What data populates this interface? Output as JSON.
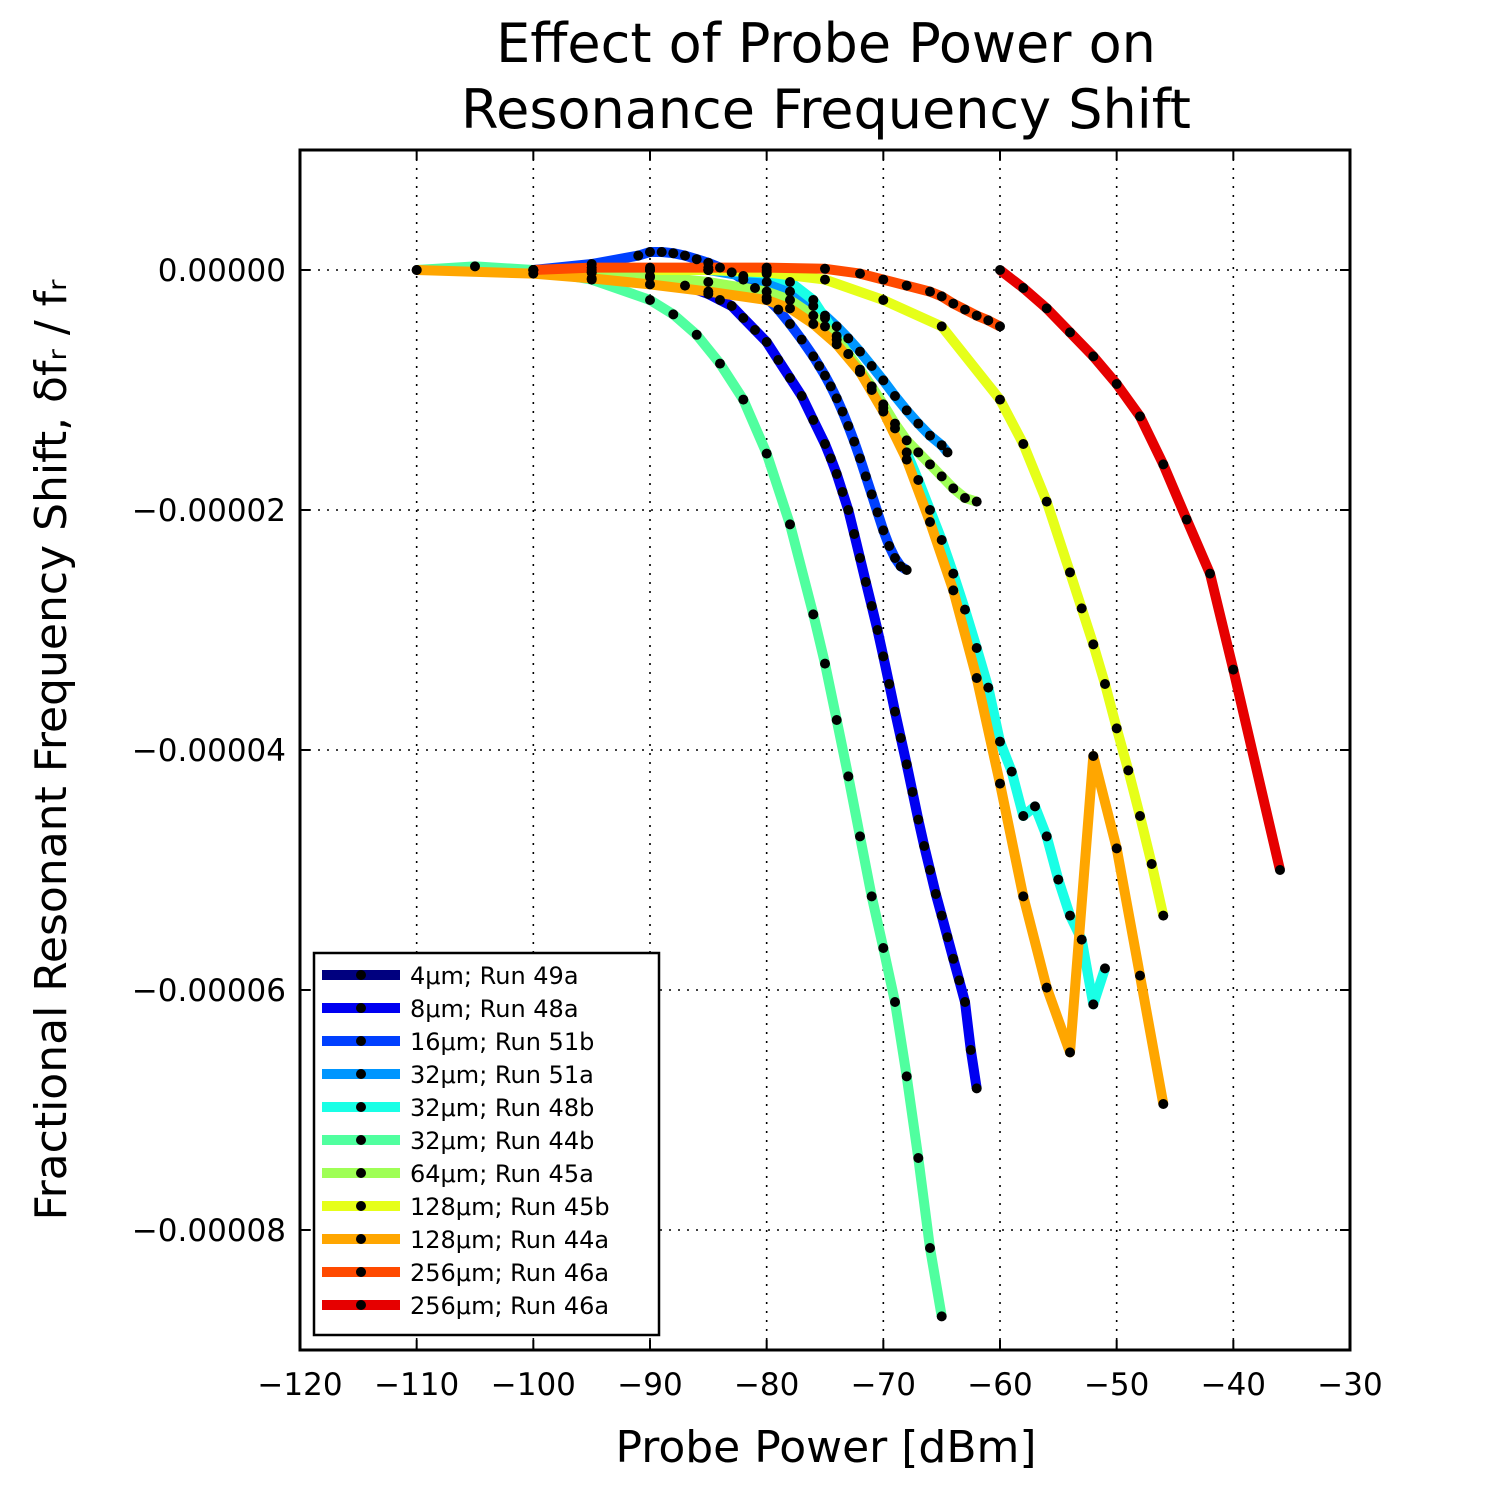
{
  "chart_data": {
    "type": "line",
    "title_lines": [
      "Effect of Probe Power on",
      "Resonance Frequency Shift"
    ],
    "xlabel": "Probe Power [dBm]",
    "ylabel": "Fractional Resonant Frequency Shift, δfᵣ / fᵣ",
    "xlim": [
      -120,
      -30
    ],
    "ylim": [
      -9e-05,
      1e-05
    ],
    "xticks": [
      -120,
      -110,
      -100,
      -90,
      -80,
      -70,
      -60,
      -50,
      -40,
      -30
    ],
    "xtick_labels": [
      "−120",
      "−110",
      "−100",
      "−90",
      "−80",
      "−70",
      "−60",
      "−50",
      "−40",
      "−30"
    ],
    "yticks": [
      0,
      -2e-05,
      -4e-05,
      -6e-05,
      -8e-05
    ],
    "ytick_labels": [
      "0.00000",
      "−0.00002",
      "−0.00004",
      "−0.00006",
      "−0.00008"
    ],
    "grid": true,
    "legend_position": "lower-left",
    "series": [
      {
        "name": "4μm; Run 49a",
        "color": "#00007f",
        "x": [
          -100,
          -95,
          -90,
          -85,
          -80
        ],
        "y": [
          0,
          0,
          0,
          0,
          0
        ]
      },
      {
        "name": "8μm; Run 48a",
        "color": "#0000f1",
        "x": [
          -100,
          -95,
          -90,
          -87,
          -85,
          -84,
          -83,
          -82,
          -81,
          -80,
          -79,
          -78,
          -77,
          -76,
          -75,
          -74.5,
          -74,
          -73.5,
          -73,
          -72.5,
          -72,
          -71.5,
          -71,
          -70.5,
          -70,
          -69.5,
          -69,
          -68.5,
          -68,
          -67.5,
          -67,
          -66.5,
          -66,
          -65.5,
          -65,
          -64.5,
          -64,
          -63.5,
          -63,
          -62.5,
          -62
        ],
        "y": [
          0,
          -2e-07,
          -6e-07,
          -1.3e-06,
          -2e-06,
          -2.5e-06,
          -3e-06,
          -4e-06,
          -5e-06,
          -6e-06,
          -7.5e-06,
          -9e-06,
          -1.05e-05,
          -1.25e-05,
          -1.45e-05,
          -1.57e-05,
          -1.7e-05,
          -1.85e-05,
          -2e-05,
          -2.2e-05,
          -2.4e-05,
          -2.6e-05,
          -2.8e-05,
          -3e-05,
          -3.22e-05,
          -3.45e-05,
          -3.68e-05,
          -3.9e-05,
          -4.12e-05,
          -4.35e-05,
          -4.58e-05,
          -4.8e-05,
          -5e-05,
          -5.2e-05,
          -5.38e-05,
          -5.56e-05,
          -5.74e-05,
          -5.92e-05,
          -6.1e-05,
          -6.5e-05,
          -6.82e-05
        ]
      },
      {
        "name": "16μm; Run 51b",
        "color": "#0040ff",
        "x": [
          -100,
          -95,
          -91,
          -90,
          -89,
          -88,
          -87,
          -86,
          -85,
          -84,
          -83,
          -82,
          -81,
          -80,
          -79,
          -78,
          -77,
          -76,
          -75.5,
          -75,
          -74.5,
          -74,
          -73.5,
          -73,
          -72.5,
          -72,
          -71.5,
          -71,
          -70.5,
          -70,
          -69.5,
          -69,
          -68.5,
          -68
        ],
        "y": [
          0,
          5e-07,
          1.2e-06,
          1.5e-06,
          1.5e-06,
          1.4e-06,
          1.2e-06,
          9e-07,
          6e-07,
          2e-07,
          -2e-07,
          -8e-07,
          -1.5e-06,
          -2.3e-06,
          -3.3e-06,
          -4.5e-06,
          -5.8e-06,
          -7.2e-06,
          -8e-06,
          -8.8e-06,
          -9.7e-06,
          -1.07e-05,
          -1.18e-05,
          -1.3e-05,
          -1.43e-05,
          -1.57e-05,
          -1.72e-05,
          -1.87e-05,
          -2.02e-05,
          -2.17e-05,
          -2.3e-05,
          -2.4e-05,
          -2.47e-05,
          -2.5e-05
        ]
      },
      {
        "name": "32μm; Run 51a",
        "color": "#0096ff",
        "x": [
          -85,
          -82,
          -80,
          -78,
          -76,
          -75,
          -74,
          -73,
          -72,
          -71,
          -70,
          -69,
          -68,
          -67,
          -66,
          -65,
          -64.5
        ],
        "y": [
          0,
          -5e-07,
          -1e-06,
          -1.8e-06,
          -3e-06,
          -3.8e-06,
          -4.7e-06,
          -5.7e-06,
          -6.8e-06,
          -8e-06,
          -9.2e-06,
          -1.05e-05,
          -1.17e-05,
          -1.28e-05,
          -1.38e-05,
          -1.46e-05,
          -1.52e-05
        ]
      },
      {
        "name": "32μm; Run 48b",
        "color": "#19ffe6",
        "x": [
          -90,
          -85,
          -80,
          -78,
          -76,
          -75,
          -74,
          -73,
          -72,
          -71,
          -70,
          -69,
          -68,
          -67,
          -66,
          -65,
          -64,
          -63,
          -62,
          -61,
          -60,
          -59,
          -58,
          -57,
          -56,
          -55,
          -54,
          -53,
          -52,
          -51
        ],
        "y": [
          0,
          0,
          -3e-07,
          -1e-06,
          -2.5e-06,
          -4e-06,
          -5.5e-06,
          -7e-06,
          -8.5e-06,
          -1e-05,
          -1.15e-05,
          -1.32e-05,
          -1.52e-05,
          -1.75e-05,
          -2e-05,
          -2.25e-05,
          -2.53e-05,
          -2.83e-05,
          -3.15e-05,
          -3.48e-05,
          -3.93e-05,
          -4.18e-05,
          -4.55e-05,
          -4.47e-05,
          -4.72e-05,
          -5.08e-05,
          -5.38e-05,
          -5.58e-05,
          -6.12e-05,
          -5.82e-05
        ]
      },
      {
        "name": "32μm; Run 44b",
        "color": "#50ff9f",
        "x": [
          -110,
          -105,
          -100,
          -95,
          -90,
          -88,
          -86,
          -84,
          -82,
          -80,
          -78,
          -76,
          -75,
          -74,
          -73,
          -72,
          -71,
          -70,
          -69,
          -68,
          -67,
          -66,
          -65
        ],
        "y": [
          0,
          3e-07,
          0,
          -8e-07,
          -2.5e-06,
          -3.7e-06,
          -5.4e-06,
          -7.8e-06,
          -1.08e-05,
          -1.53e-05,
          -2.12e-05,
          -2.87e-05,
          -3.28e-05,
          -3.75e-05,
          -4.22e-05,
          -4.72e-05,
          -5.22e-05,
          -5.65e-05,
          -6.1e-05,
          -6.72e-05,
          -7.4e-05,
          -8.15e-05,
          -8.72e-05
        ]
      },
      {
        "name": "64μm; Run 45a",
        "color": "#9fff56",
        "x": [
          -100,
          -95,
          -90,
          -85,
          -80,
          -78,
          -76,
          -75,
          -74,
          -73,
          -72,
          -71,
          -70,
          -69,
          -68,
          -67,
          -66,
          -65,
          -64,
          -63,
          -62
        ],
        "y": [
          0,
          -2e-07,
          -5e-07,
          -1e-06,
          -1.8e-06,
          -2.5e-06,
          -3.8e-06,
          -4.7e-06,
          -5.8e-06,
          -7e-06,
          -8.3e-06,
          -9.7e-06,
          -1.12e-05,
          -1.28e-05,
          -1.42e-05,
          -1.52e-05,
          -1.62e-05,
          -1.72e-05,
          -1.82e-05,
          -1.9e-05,
          -1.93e-05
        ]
      },
      {
        "name": "128μm; Run 45b",
        "color": "#e6ff19",
        "x": [
          -90,
          -85,
          -80,
          -75,
          -70,
          -65,
          -60,
          -58,
          -56,
          -54,
          -53,
          -52,
          -51,
          -50,
          -49,
          -48,
          -47,
          -46
        ],
        "y": [
          0,
          0,
          -2e-07,
          -8e-07,
          -2.5e-06,
          -4.7e-06,
          -1.08e-05,
          -1.45e-05,
          -1.93e-05,
          -2.52e-05,
          -2.82e-05,
          -3.12e-05,
          -3.45e-05,
          -3.82e-05,
          -4.17e-05,
          -4.55e-05,
          -4.95e-05,
          -5.38e-05
        ]
      },
      {
        "name": "128μm; Run 44a",
        "color": "#ffa600",
        "x": [
          -110,
          -100,
          -95,
          -90,
          -85,
          -80,
          -78,
          -76,
          -74,
          -72,
          -70,
          -68,
          -66,
          -64,
          -62,
          -60,
          -58,
          -56,
          -54,
          -52,
          -50,
          -48,
          -46
        ],
        "y": [
          0,
          -3e-07,
          -7e-07,
          -1.2e-06,
          -1.8e-06,
          -2.5e-06,
          -3.2e-06,
          -4.5e-06,
          -6.2e-06,
          -8.5e-06,
          -1.18e-05,
          -1.58e-05,
          -2.1e-05,
          -2.67e-05,
          -3.4e-05,
          -4.28e-05,
          -5.22e-05,
          -5.98e-05,
          -6.52e-05,
          -4.05e-05,
          -4.82e-05,
          -5.88e-05,
          -6.95e-05
        ]
      },
      {
        "name": "256μm; Run 46a",
        "color": "#ff4a00",
        "x": [
          -100,
          -95,
          -90,
          -85,
          -80,
          -75,
          -72,
          -70,
          -68,
          -66,
          -65,
          -64,
          -63,
          -62,
          -61,
          -60
        ],
        "y": [
          0,
          2e-07,
          2e-07,
          2e-07,
          2e-07,
          1e-07,
          -3e-07,
          -8e-07,
          -1.3e-06,
          -1.8e-06,
          -2.2e-06,
          -2.8e-06,
          -3.3e-06,
          -3.8e-06,
          -4.2e-06,
          -4.7e-06
        ]
      },
      {
        "name": "256μm; Run 46a",
        "color": "#e60000",
        "x": [
          -60,
          -58,
          -56,
          -54,
          -52,
          -50,
          -48,
          -46,
          -44,
          -42,
          -40,
          -36
        ],
        "y": [
          0,
          -1.5e-06,
          -3.2e-06,
          -5.2e-06,
          -7.2e-06,
          -9.5e-06,
          -1.22e-05,
          -1.62e-05,
          -2.08e-05,
          -2.53e-05,
          -3.33e-05,
          -5e-05
        ]
      }
    ]
  }
}
